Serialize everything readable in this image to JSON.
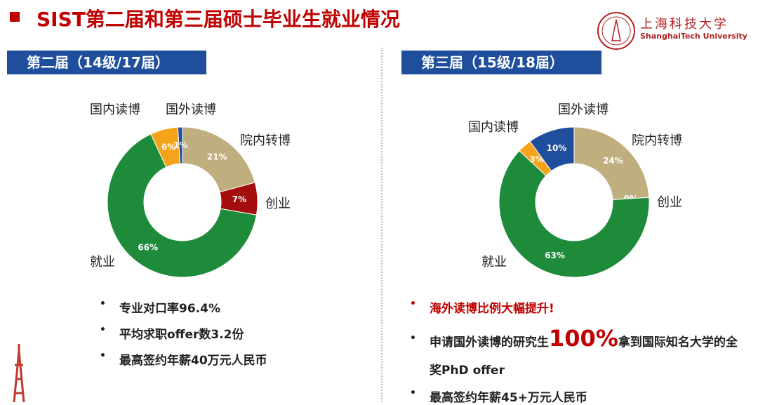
{
  "header": {
    "title": "SIST第二届和第三届硕士毕业生就业情况",
    "logo_cn": "上海科技大学",
    "logo_en": "ShanghaiTech University"
  },
  "panels": [
    {
      "title": "第二届（14级/17届）",
      "bullets": [
        "专业对口率96.4%",
        "平均求职offer数3.2份",
        "最高签约年薪40万元人民币"
      ]
    },
    {
      "title": "第三届（15级/18届）",
      "highlight": "海外读博比例大幅提升!",
      "bullet_parts": [
        "申请国外读博的研究生",
        "100%",
        "拿到国际知名大学的全奖PhD offer"
      ],
      "last_bullet": "最高签约年薪45+万元人民币"
    }
  ],
  "chart_data": [
    {
      "type": "pie",
      "categories": [
        "院内转博",
        "创业",
        "就业",
        "国内读博",
        "国外读博"
      ],
      "values": [
        21,
        7,
        66,
        6,
        1
      ],
      "value_labels": [
        "21%",
        "7%",
        "66%",
        "6%",
        "1%"
      ],
      "colors": [
        "#bfae7e",
        "#a30d0d",
        "#1e8b3a",
        "#f5a31a",
        "#1f4e9c"
      ]
    },
    {
      "type": "pie",
      "categories": [
        "院内转博",
        "创业",
        "就业",
        "国内读博",
        "国外读博"
      ],
      "values": [
        24,
        0,
        63,
        3,
        10
      ],
      "value_labels": [
        "24%",
        "0%",
        "63%",
        "3%",
        "10%"
      ],
      "colors": [
        "#bfae7e",
        "#a30d0d",
        "#1e8b3a",
        "#f5a31a",
        "#1f4e9c"
      ]
    }
  ]
}
